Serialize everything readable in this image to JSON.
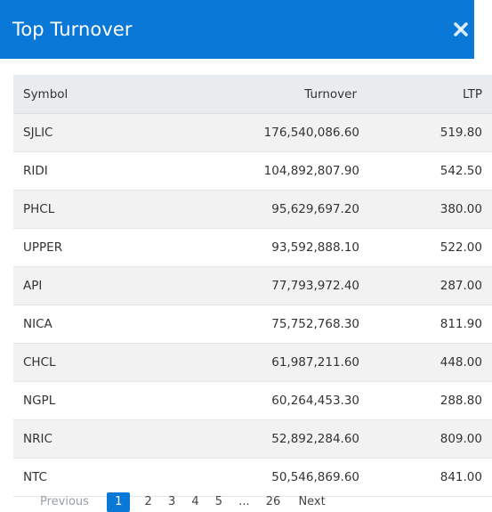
{
  "modal": {
    "title": "Top Turnover",
    "close_icon": "close-icon"
  },
  "colors": {
    "header_bg": "#0a78d6",
    "header_text": "#ffffff",
    "table_head_bg": "#e9ecef",
    "row_stripe": "#f2f2f2"
  },
  "table": {
    "columns": {
      "symbol": "Symbol",
      "turnover": "Turnover",
      "ltp": "LTP"
    },
    "rows": [
      {
        "symbol": "SJLIC",
        "turnover": "176,540,086.60",
        "ltp": "519.80"
      },
      {
        "symbol": "RIDI",
        "turnover": "104,892,807.90",
        "ltp": "542.50"
      },
      {
        "symbol": "PHCL",
        "turnover": "95,629,697.20",
        "ltp": "380.00"
      },
      {
        "symbol": "UPPER",
        "turnover": "93,592,888.10",
        "ltp": "522.00"
      },
      {
        "symbol": "API",
        "turnover": "77,793,972.40",
        "ltp": "287.00"
      },
      {
        "symbol": "NICA",
        "turnover": "75,752,768.30",
        "ltp": "811.90"
      },
      {
        "symbol": "CHCL",
        "turnover": "61,987,211.60",
        "ltp": "448.00"
      },
      {
        "symbol": "NGPL",
        "turnover": "60,264,453.30",
        "ltp": "288.80"
      },
      {
        "symbol": "NRIC",
        "turnover": "52,892,284.60",
        "ltp": "809.00"
      },
      {
        "symbol": "NTC",
        "turnover": "50,546,869.60",
        "ltp": "841.00"
      }
    ]
  },
  "pagination": {
    "previous_label": "Previous",
    "pages": [
      "1",
      "2",
      "3",
      "4",
      "5"
    ],
    "active_page": "1",
    "ellipsis": "...",
    "last_page": "26",
    "next_label": "Next"
  }
}
